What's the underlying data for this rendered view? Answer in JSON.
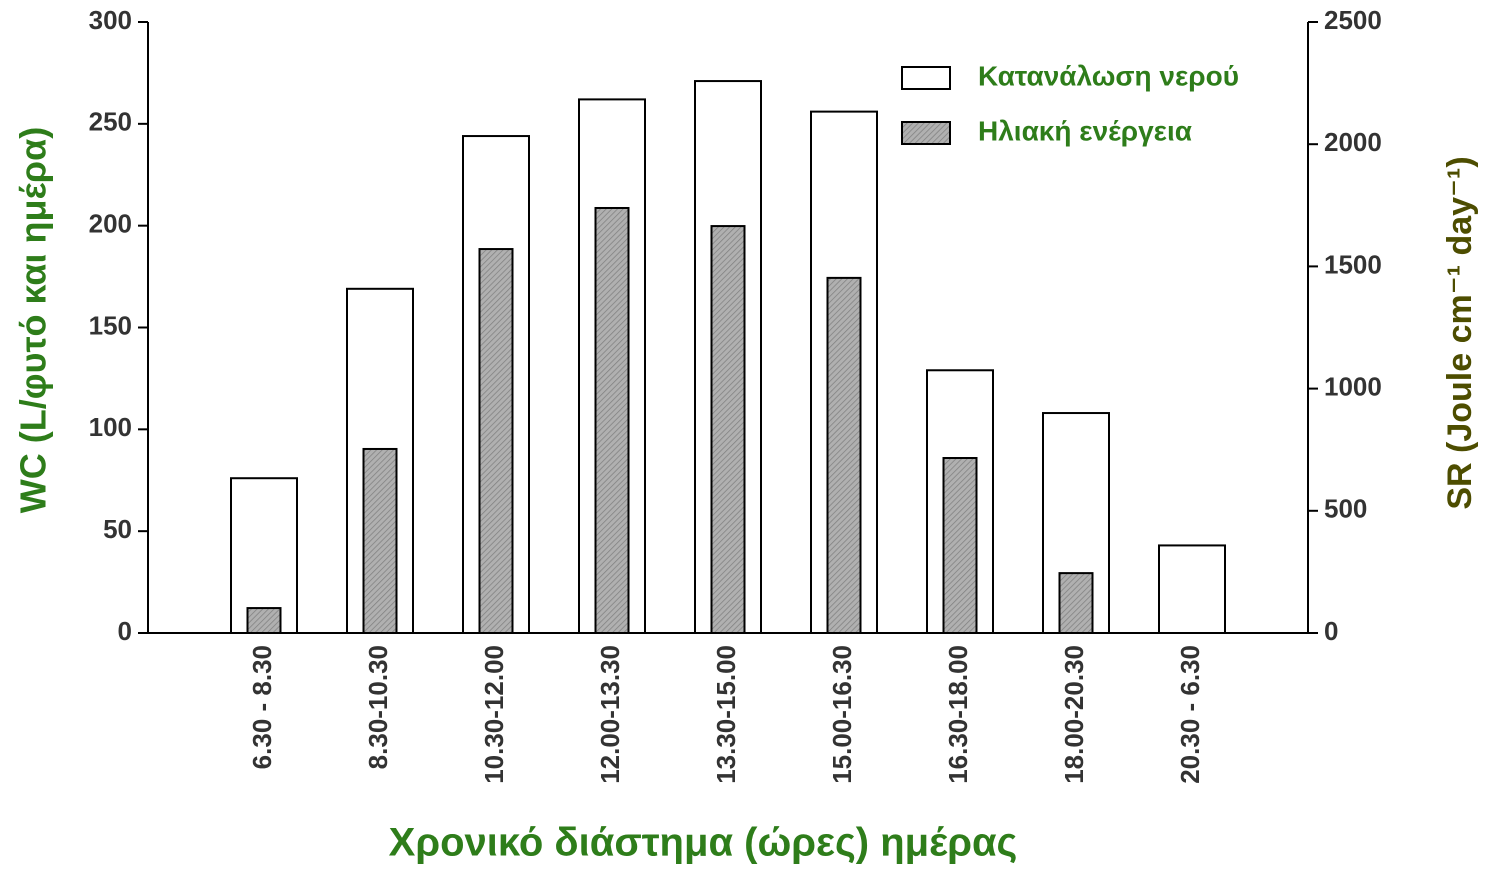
{
  "chart_data": {
    "type": "bar",
    "xlabel": "Χρονικό διάστημα (ώρες) ημέρας",
    "ylabel": "WC (L/φυτό και ημέρα)",
    "y2label": "SR (Joule cm⁻¹ day⁻¹)",
    "categories": [
      "6.30 - 8.30",
      "8.30-10.30",
      "10.30-12.00",
      "12.00-13.30",
      "13.30-15.00",
      "15.00-16.30",
      "16.30-18.00",
      "18.00-20.30",
      "20.30 - 6.30"
    ],
    "series": [
      {
        "name": "Κατανάλωση νερού",
        "color": "#ffffff",
        "values": [
          76,
          169,
          244,
          262,
          271,
          256,
          129,
          108,
          43
        ]
      },
      {
        "name": "Ηλιακή ενέργεια",
        "color": "#a0a0a0",
        "axis": "y2",
        "values": [
          102,
          753,
          1571,
          1739,
          1665,
          1453,
          716,
          245,
          null
        ]
      }
    ],
    "ylim": [
      0,
      300
    ],
    "yticks": [
      0,
      50,
      100,
      150,
      200,
      250,
      300
    ],
    "y2lim": [
      0,
      2500
    ],
    "y2ticks": [
      0,
      500,
      1000,
      1500,
      2000,
      2500
    ],
    "legend": "upper right"
  }
}
